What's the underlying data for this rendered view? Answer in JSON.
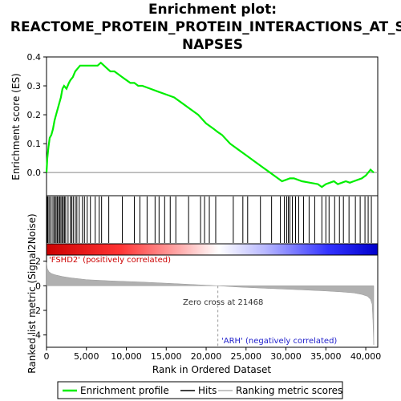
{
  "chart_data": {
    "type": "line",
    "title_lines": [
      "Enrichment plot:",
      "REACTOME_PROTEIN_PROTEIN_INTERACTIONS_AT_SY",
      "NAPSES"
    ],
    "xlabel": "Rank in Ordered Dataset",
    "ylabel_top": "Enrichment score (ES)",
    "ylabel_bottom": "Ranked list metric (Signal2Noise)",
    "xlim": [
      0,
      41500
    ],
    "x_ticks": [
      "0",
      "5,000",
      "10,000",
      "15,000",
      "20,000",
      "25,000",
      "30,000",
      "35,000",
      "40,000"
    ],
    "x_tick_values": [
      0,
      5000,
      10000,
      15000,
      20000,
      25000,
      30000,
      35000,
      40000
    ],
    "es_ylim": [
      -0.08,
      0.4
    ],
    "es_ticks": [
      "0.0",
      "0.1",
      "0.2",
      "0.3",
      "0.4"
    ],
    "es_tick_values": [
      0.0,
      0.1,
      0.2,
      0.3,
      0.4
    ],
    "metric_ylim": [
      -5,
      2.5
    ],
    "metric_ticks": [
      "2",
      "0",
      "-2",
      "-4"
    ],
    "metric_tick_values": [
      2,
      0,
      -2,
      -4
    ],
    "enrichment_profile": {
      "x": [
        0,
        100,
        250,
        400,
        600,
        800,
        1000,
        1200,
        1400,
        1600,
        1800,
        2000,
        2200,
        2500,
        2800,
        3000,
        3300,
        3600,
        3900,
        4200,
        4500,
        4800,
        5200,
        5600,
        6000,
        6400,
        6800,
        7200,
        7600,
        8000,
        8500,
        9000,
        9500,
        10000,
        10500,
        11000,
        11500,
        12000,
        13000,
        14000,
        15000,
        16000,
        17000,
        18000,
        19000,
        20000,
        21000,
        21468,
        22000,
        23000,
        24000,
        25000,
        26000,
        27000,
        28000,
        28500,
        29000,
        29500,
        30000,
        30500,
        31000,
        32000,
        33000,
        34000,
        34500,
        35000,
        35500,
        36000,
        36500,
        37000,
        37500,
        38000,
        38500,
        39000,
        39500,
        40000,
        40300,
        40600,
        41000
      ],
      "y": [
        0.0,
        0.05,
        0.09,
        0.12,
        0.13,
        0.15,
        0.18,
        0.2,
        0.22,
        0.24,
        0.26,
        0.29,
        0.3,
        0.29,
        0.31,
        0.32,
        0.33,
        0.35,
        0.36,
        0.37,
        0.37,
        0.37,
        0.37,
        0.37,
        0.37,
        0.37,
        0.38,
        0.37,
        0.36,
        0.35,
        0.35,
        0.34,
        0.33,
        0.32,
        0.31,
        0.31,
        0.3,
        0.3,
        0.29,
        0.28,
        0.27,
        0.26,
        0.24,
        0.22,
        0.2,
        0.17,
        0.15,
        0.14,
        0.13,
        0.1,
        0.08,
        0.06,
        0.04,
        0.02,
        0.0,
        -0.01,
        -0.02,
        -0.03,
        -0.025,
        -0.02,
        -0.02,
        -0.03,
        -0.035,
        -0.04,
        -0.05,
        -0.04,
        -0.035,
        -0.03,
        -0.04,
        -0.035,
        -0.03,
        -0.035,
        -0.03,
        -0.025,
        -0.02,
        -0.01,
        0.0,
        0.01,
        0.0
      ]
    },
    "hits": [
      50,
      150,
      300,
      450,
      700,
      900,
      1050,
      1200,
      1350,
      1500,
      1650,
      1800,
      1950,
      2100,
      2250,
      2400,
      2700,
      3000,
      3150,
      3350,
      3600,
      3800,
      4100,
      4500,
      4750,
      5100,
      5500,
      6100,
      6600,
      6900,
      7800,
      9500,
      11000,
      11700,
      12600,
      13600,
      14100,
      14800,
      15500,
      16200,
      17800,
      19300,
      19800,
      20400,
      21200,
      23400,
      24600,
      25200,
      26800,
      28200,
      29300,
      29800,
      30100,
      30300,
      30500,
      30800,
      31200,
      31600,
      32200,
      32900,
      33600,
      34500,
      35000,
      35400,
      36100,
      36700,
      37200,
      37900,
      38700,
      39300,
      39900,
      40300,
      40700
    ],
    "metric_curve": {
      "x": [
        0,
        100,
        300,
        600,
        1000,
        2000,
        3000,
        5000,
        8000,
        12000,
        16000,
        19000,
        21468,
        24000,
        28000,
        32000,
        35000,
        37000,
        38500,
        39500,
        40200,
        40600,
        40800,
        40900,
        41000
      ],
      "y": [
        1.9,
        1.4,
        1.15,
        1.0,
        0.9,
        0.75,
        0.65,
        0.5,
        0.4,
        0.3,
        0.18,
        0.08,
        0.0,
        -0.1,
        -0.22,
        -0.33,
        -0.42,
        -0.5,
        -0.58,
        -0.7,
        -0.85,
        -1.1,
        -1.5,
        -2.8,
        -4.8
      ]
    },
    "zero_cross_label": "Zero cross at 21468",
    "zero_cross": 21468,
    "pos_label": "'FSHD2' (positively correlated)",
    "neg_label": "'ARH' (negatively correlated)",
    "colors": {
      "profile": "#00ee00",
      "pos_label": "#cc0000",
      "neg_label": "#2222cc",
      "metric_fill": "#b0b0b0"
    },
    "legend": [
      "Enrichment profile",
      "Hits",
      "Ranking metric scores"
    ]
  }
}
